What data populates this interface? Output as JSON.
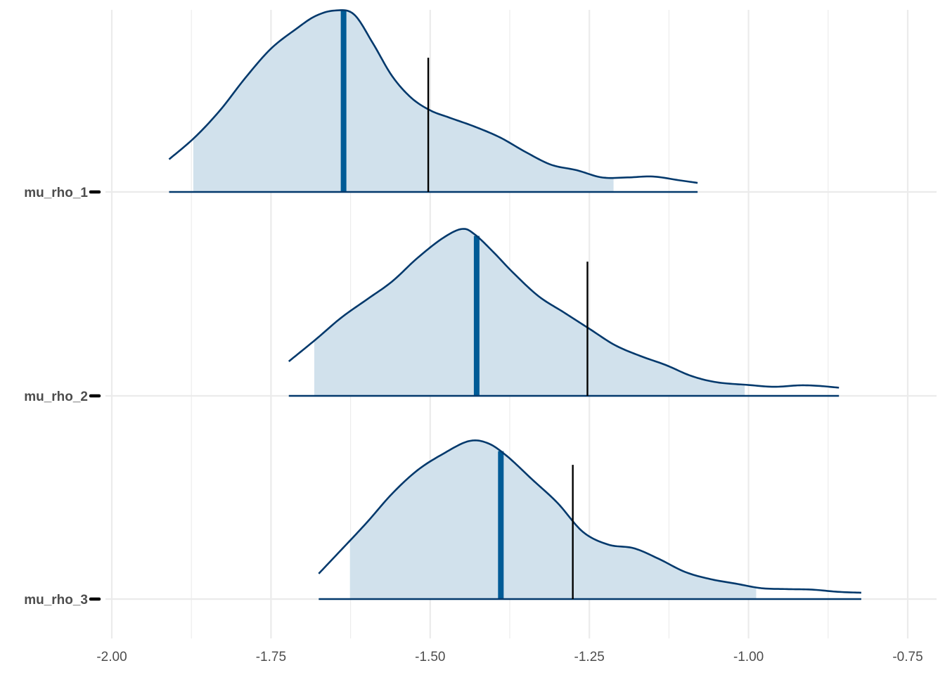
{
  "chart_data": {
    "type": "area",
    "xlabel": "",
    "ylabel": "",
    "xlim": [
      -2.0,
      -0.75
    ],
    "x_ticks": [
      {
        "value": -2.0,
        "label": "-2.00"
      },
      {
        "value": -1.75,
        "label": "-1.75"
      },
      {
        "value": -1.5,
        "label": "-1.50"
      },
      {
        "value": -1.25,
        "label": "-1.25"
      },
      {
        "value": -1.0,
        "label": "-1.00"
      },
      {
        "value": -0.75,
        "label": "-0.75"
      }
    ],
    "x_minor_ticks": [
      -1.875,
      -1.625,
      -1.375,
      -1.125,
      -0.875
    ],
    "grid": true,
    "legend": "none",
    "colors": {
      "fill": "#d1e1ec",
      "outline": "#03396c",
      "median": "#005b96",
      "reference": "#000000",
      "grid": "#ebebeb"
    },
    "series": [
      {
        "name": "mu_rho_1",
        "range": [
          -1.91,
          -1.08
        ],
        "interval": [
          -1.872,
          -1.212
        ],
        "median": -1.636,
        "reference": -1.503,
        "density": [
          [
            -1.91,
            0.18
          ],
          [
            -1.87,
            0.3
          ],
          [
            -1.83,
            0.45
          ],
          [
            -1.79,
            0.63
          ],
          [
            -1.75,
            0.79
          ],
          [
            -1.71,
            0.9
          ],
          [
            -1.68,
            0.97
          ],
          [
            -1.65,
            1.0
          ],
          [
            -1.62,
            0.98
          ],
          [
            -1.59,
            0.82
          ],
          [
            -1.56,
            0.64
          ],
          [
            -1.53,
            0.52
          ],
          [
            -1.5,
            0.45
          ],
          [
            -1.47,
            0.41
          ],
          [
            -1.43,
            0.36
          ],
          [
            -1.39,
            0.3
          ],
          [
            -1.35,
            0.22
          ],
          [
            -1.31,
            0.15
          ],
          [
            -1.27,
            0.12
          ],
          [
            -1.23,
            0.08
          ],
          [
            -1.19,
            0.08
          ],
          [
            -1.15,
            0.085
          ],
          [
            -1.11,
            0.065
          ],
          [
            -1.08,
            0.05
          ]
        ]
      },
      {
        "name": "mu_rho_2",
        "range": [
          -1.722,
          -0.858
        ],
        "interval": [
          -1.682,
          -1.006
        ],
        "median": -1.427,
        "reference": -1.253,
        "density": [
          [
            -1.722,
            0.19
          ],
          [
            -1.68,
            0.31
          ],
          [
            -1.64,
            0.43
          ],
          [
            -1.6,
            0.53
          ],
          [
            -1.56,
            0.63
          ],
          [
            -1.52,
            0.76
          ],
          [
            -1.48,
            0.87
          ],
          [
            -1.45,
            0.92
          ],
          [
            -1.43,
            0.89
          ],
          [
            -1.4,
            0.79
          ],
          [
            -1.37,
            0.68
          ],
          [
            -1.33,
            0.55
          ],
          [
            -1.29,
            0.46
          ],
          [
            -1.25,
            0.37
          ],
          [
            -1.21,
            0.28
          ],
          [
            -1.17,
            0.22
          ],
          [
            -1.13,
            0.17
          ],
          [
            -1.09,
            0.11
          ],
          [
            -1.05,
            0.075
          ],
          [
            -1.0,
            0.06
          ],
          [
            -0.96,
            0.05
          ],
          [
            -0.92,
            0.058
          ],
          [
            -0.89,
            0.055
          ],
          [
            -0.858,
            0.045
          ]
        ]
      },
      {
        "name": "mu_rho_3",
        "range": [
          -1.675,
          -0.823
        ],
        "interval": [
          -1.626,
          -0.988
        ],
        "median": -1.389,
        "reference": -1.276,
        "density": [
          [
            -1.675,
            0.14
          ],
          [
            -1.64,
            0.27
          ],
          [
            -1.6,
            0.42
          ],
          [
            -1.56,
            0.58
          ],
          [
            -1.52,
            0.71
          ],
          [
            -1.48,
            0.8
          ],
          [
            -1.44,
            0.87
          ],
          [
            -1.41,
            0.86
          ],
          [
            -1.38,
            0.79
          ],
          [
            -1.34,
            0.66
          ],
          [
            -1.3,
            0.53
          ],
          [
            -1.26,
            0.37
          ],
          [
            -1.22,
            0.3
          ],
          [
            -1.18,
            0.28
          ],
          [
            -1.14,
            0.22
          ],
          [
            -1.1,
            0.15
          ],
          [
            -1.06,
            0.11
          ],
          [
            -1.02,
            0.085
          ],
          [
            -0.98,
            0.06
          ],
          [
            -0.94,
            0.055
          ],
          [
            -0.9,
            0.052
          ],
          [
            -0.86,
            0.04
          ],
          [
            -0.823,
            0.035
          ]
        ]
      }
    ]
  }
}
